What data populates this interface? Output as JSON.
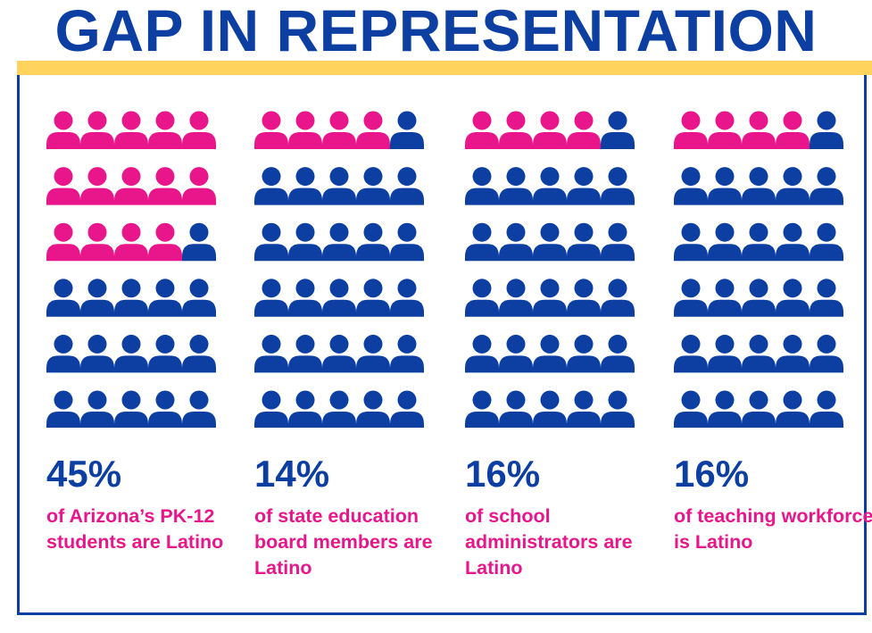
{
  "title": "GAP IN REPRESENTATION",
  "colors": {
    "latino": "#e8168a",
    "other": "#0d3fa3",
    "accent_bar": "#ffd35c",
    "title": "#0d3fa3",
    "frame": "#0d3fa3",
    "description": "#e8168a",
    "percent": "#0d3fa3"
  },
  "chart_data": {
    "type": "pictograph",
    "icons_per_row": 5,
    "rows": 6,
    "total_icons": 30,
    "panels": [
      {
        "percent_label": "45%",
        "value": 45,
        "description": "of Arizona’s PK-12 students are Latino",
        "highlighted_icons": 14
      },
      {
        "percent_label": "14%",
        "value": 14,
        "description": "of state education board members are Latino",
        "highlighted_icons": 4
      },
      {
        "percent_label": "16%",
        "value": 16,
        "description": "of school administrators are Latino",
        "highlighted_icons": 4
      },
      {
        "percent_label": "16%",
        "value": 16,
        "description": "of teaching workforce is Latino",
        "highlighted_icons": 4
      }
    ]
  }
}
